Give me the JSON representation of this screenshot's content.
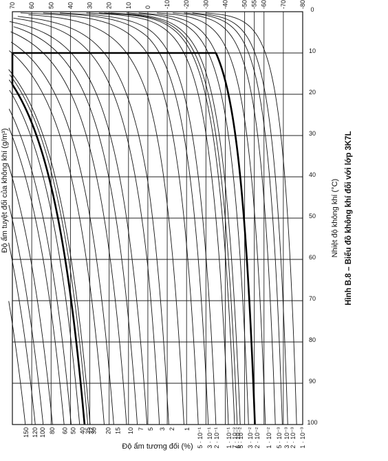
{
  "chart_data": {
    "type": "line",
    "title": "Hình B.8 – Biểu đồ không khí đối với lớp 3K7L",
    "xlabel": "Độ ẩm tương đối (%)",
    "ylabel_left": "Độ ẩm tuyệt đối của không khí (g/m³)",
    "ylabel_right": "Nhiệt độ không khí (°C)",
    "xlim": [
      100,
      0
    ],
    "ylim_temperature": [
      -80,
      70
    ],
    "grid": true,
    "x_ticks": [
      "100",
      "90",
      "80",
      "70",
      "60",
      "50",
      "40",
      "30",
      "20",
      "10",
      "0"
    ],
    "x_tick_values": [
      100,
      90,
      80,
      70,
      60,
      50,
      40,
      30,
      20,
      10,
      0
    ],
    "temp_ticks": [
      "70",
      "60",
      "50",
      "40",
      "30",
      "20",
      "10",
      "0",
      "-10",
      "-20",
      "-30",
      "-40",
      "-50",
      "-55",
      "-60",
      "-70",
      "-80"
    ],
    "temp_tick_values": [
      70,
      60,
      50,
      40,
      30,
      20,
      10,
      0,
      -10,
      -20,
      -30,
      -40,
      -50,
      -55,
      -60,
      -70,
      -80
    ],
    "abs_humidity_ticks": [
      {
        "label": "150",
        "temp": 62.9
      },
      {
        "label": "120",
        "temp": 58.3
      },
      {
        "label": "100",
        "temp": 54.4
      },
      {
        "label": "80",
        "temp": 49.4
      },
      {
        "label": "60",
        "temp": 42.8
      },
      {
        "label": "50",
        "temp": 38.6
      },
      {
        "label": "40",
        "temp": 33.7
      },
      {
        "label": "35",
        "temp": 30.9
      },
      {
        "label": "32",
        "temp": 29.1
      },
      {
        "label": "30",
        "temp": 27.8
      },
      {
        "label": "20",
        "temp": 20.4
      },
      {
        "label": "15",
        "temp": 15.4
      },
      {
        "label": "10",
        "temp": 8.9
      },
      {
        "label": "7",
        "temp": 3.5
      },
      {
        "label": "5",
        "temp": -1.4
      },
      {
        "label": "3",
        "temp": -7.4
      },
      {
        "label": "2",
        "temp": -12.4
      },
      {
        "label": "1",
        "temp": -20.2
      },
      {
        "label": "5 · 10⁻¹",
        "temp": -27.0
      },
      {
        "label": "3 · 10⁻¹",
        "temp": -32.0
      },
      {
        "label": "2 · 10⁻¹",
        "temp": -35.5
      },
      {
        "label": "1 · 10⁻¹",
        "temp": -42.0
      },
      {
        "label": "7 · 10⁻²",
        "temp": -45.0
      },
      {
        "label": "6 · 10⁻²",
        "temp": -46.5
      },
      {
        "label": "5 · 10⁻²",
        "temp": -48.0
      },
      {
        "label": "3 · 10⁻²",
        "temp": -53.0
      },
      {
        "label": "2 · 10⁻²",
        "temp": -56.5
      },
      {
        "label": "1 · 10⁻²",
        "temp": -62.5
      },
      {
        "label": "5 · 10⁻³",
        "temp": -68.0
      },
      {
        "label": "3 · 10⁻³",
        "temp": -71.8
      },
      {
        "label": "2 · 10⁻³",
        "temp": -75.0
      },
      {
        "label": "1 · 10⁻³",
        "temp": -80.0
      }
    ],
    "series_abs_humidity_gm3": [
      150,
      120,
      100,
      80,
      60,
      50,
      40,
      35,
      32,
      30,
      20,
      15,
      10,
      7,
      5,
      3,
      2,
      1,
      0.5,
      0.3,
      0.2,
      0.1,
      0.07,
      0.06,
      0.05,
      0.03,
      0.02,
      0.01,
      0.005,
      0.003,
      0.002,
      0.001
    ],
    "climate_boundary": {
      "points": [
        {
          "rh": 100,
          "temp": 32
        },
        {
          "rh": 10,
          "temp": 70
        },
        {
          "rh": 10,
          "temp": -35
        },
        {
          "rh": 100,
          "temp": -57
        }
      ],
      "upper_abs_humidity": 35,
      "lower_abs_humidity": 0.02
    }
  }
}
